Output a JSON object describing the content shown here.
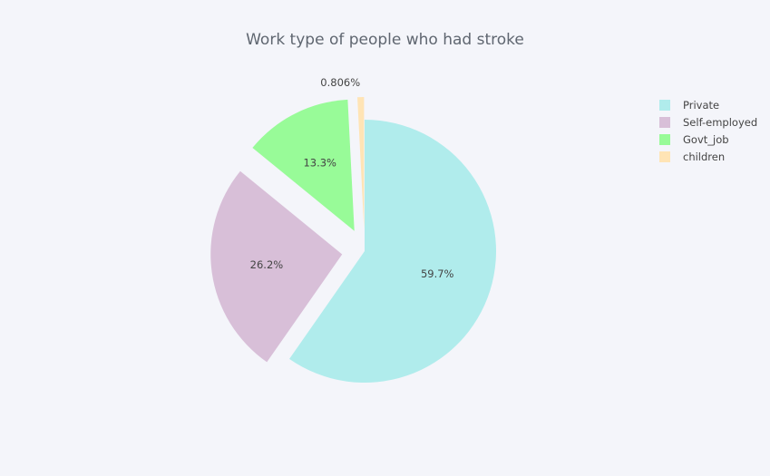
{
  "chart_data": {
    "type": "pie",
    "title": "Work type of people who had stroke",
    "labels": [
      "Private",
      "Self-employed",
      "Govt_job",
      "children"
    ],
    "values": [
      59.7,
      26.2,
      13.3,
      0.806
    ],
    "value_labels": [
      "59.7%",
      "26.2%",
      "13.3%",
      "0.806%"
    ],
    "colors": [
      "#b0ecec",
      "#d8bfd8",
      "#98fb98",
      "#ffe4b5"
    ],
    "exploded": [
      false,
      true,
      true,
      true
    ],
    "legend_position": "top-right",
    "start_angle": "top",
    "direction": "clockwise"
  }
}
